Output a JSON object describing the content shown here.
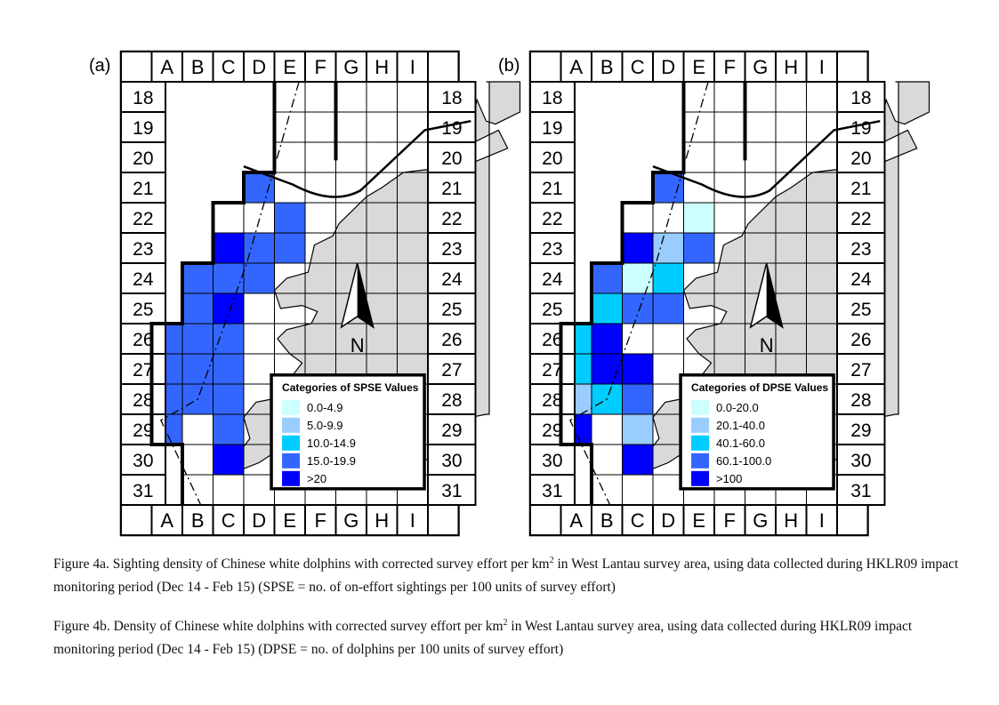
{
  "panels": [
    {
      "tag": "(a)",
      "legend_title": "Categories of SPSE Values",
      "legend_items": [
        "0.0-4.9",
        "5.0-9.9",
        "10.0-14.9",
        "15.0-19.9",
        ">20"
      ],
      "north": "N",
      "cells": [
        {
          "col": "D",
          "row": 21,
          "cat": 4
        },
        {
          "col": "E",
          "row": 22,
          "cat": 4
        },
        {
          "col": "C",
          "row": 23,
          "cat": 5
        },
        {
          "col": "D",
          "row": 23,
          "cat": 4
        },
        {
          "col": "E",
          "row": 23,
          "cat": 4
        },
        {
          "col": "B",
          "row": 24,
          "cat": 4
        },
        {
          "col": "C",
          "row": 24,
          "cat": 4
        },
        {
          "col": "D",
          "row": 24,
          "cat": 4
        },
        {
          "col": "B",
          "row": 25,
          "cat": 4
        },
        {
          "col": "C",
          "row": 25,
          "cat": 5
        },
        {
          "col": "A",
          "row": 26,
          "cat": 4
        },
        {
          "col": "B",
          "row": 26,
          "cat": 4
        },
        {
          "col": "C",
          "row": 26,
          "cat": 4
        },
        {
          "col": "A",
          "row": 27,
          "cat": 4
        },
        {
          "col": "B",
          "row": 27,
          "cat": 4
        },
        {
          "col": "C",
          "row": 27,
          "cat": 4
        },
        {
          "col": "A",
          "row": 28,
          "cat": 4
        },
        {
          "col": "B",
          "row": 28,
          "cat": 4
        },
        {
          "col": "C",
          "row": 28,
          "cat": 4
        },
        {
          "col": "A",
          "row": 29,
          "cat": 4
        },
        {
          "col": "C",
          "row": 29,
          "cat": 4
        },
        {
          "col": "C",
          "row": 30,
          "cat": 5
        }
      ]
    },
    {
      "tag": "(b)",
      "legend_title": "Categories of DPSE Values",
      "legend_items": [
        "0.0-20.0",
        "20.1-40.0",
        "40.1-60.0",
        "60.1-100.0",
        ">100"
      ],
      "north": "N",
      "cells": [
        {
          "col": "D",
          "row": 21,
          "cat": 4
        },
        {
          "col": "E",
          "row": 22,
          "cat": 1
        },
        {
          "col": "C",
          "row": 23,
          "cat": 5
        },
        {
          "col": "D",
          "row": 23,
          "cat": 2
        },
        {
          "col": "E",
          "row": 23,
          "cat": 4
        },
        {
          "col": "B",
          "row": 24,
          "cat": 4
        },
        {
          "col": "C",
          "row": 24,
          "cat": 1
        },
        {
          "col": "D",
          "row": 24,
          "cat": 3
        },
        {
          "col": "B",
          "row": 25,
          "cat": 3
        },
        {
          "col": "C",
          "row": 25,
          "cat": 4
        },
        {
          "col": "D",
          "row": 25,
          "cat": 4
        },
        {
          "col": "A",
          "row": 26,
          "cat": 3
        },
        {
          "col": "B",
          "row": 26,
          "cat": 5
        },
        {
          "col": "A",
          "row": 27,
          "cat": 3
        },
        {
          "col": "B",
          "row": 27,
          "cat": 5
        },
        {
          "col": "C",
          "row": 27,
          "cat": 5
        },
        {
          "col": "A",
          "row": 28,
          "cat": 2
        },
        {
          "col": "B",
          "row": 28,
          "cat": 3
        },
        {
          "col": "C",
          "row": 28,
          "cat": 4
        },
        {
          "col": "A",
          "row": 29,
          "cat": 5
        },
        {
          "col": "C",
          "row": 29,
          "cat": 2
        },
        {
          "col": "C",
          "row": 30,
          "cat": 5
        }
      ]
    }
  ],
  "columns": [
    "A",
    "B",
    "C",
    "D",
    "E",
    "F",
    "G",
    "H",
    "I"
  ],
  "rows": [
    18,
    19,
    20,
    21,
    22,
    23,
    24,
    25,
    26,
    27,
    28,
    29,
    30,
    31
  ],
  "category_colors": [
    "#ccffff",
    "#99ccff",
    "#00ccff",
    "#3366ff",
    "#0000ff"
  ],
  "land_color": "#d9d9d9",
  "captions": {
    "a_pre": "Figure 4a.  Sighting density of Chinese white dolphins with corrected survey effort per km",
    "a_sup": "2",
    "a_post": " in West Lantau survey area, using data collected during HKLR09 impact monitoring period (Dec 14 - Feb 15) (SPSE = no. of on-effort sightings per 100 units of survey effort)",
    "b_pre": "Figure 4b.  Density of Chinese white dolphins with corrected survey effort per km",
    "b_sup": "2",
    "b_post": " in West Lantau survey area, using data collected during HKLR09 impact monitoring period (Dec 14 - Feb 15) (DPSE = no. of dolphins per 100 units of survey effort)"
  }
}
